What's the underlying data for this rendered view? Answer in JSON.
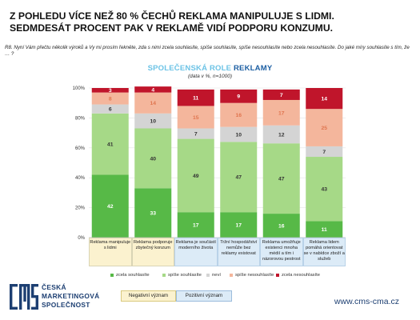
{
  "headline": {
    "line1": "Z POHLEDU VÍCE NEŽ 80 % ČECHŮ REKLAMA MANIPULUJE S LIDMI.",
    "line2": "SEDMDESÁT PROCENT PAK V REKLAMĚ VIDÍ PODPORU KONZUMU."
  },
  "question": "R8. Nyní Vám přečtu několik výroků a Vy mi prosím řekněte, zda s nimi zcela souhlasíte, spíše souhlasíte, spíše nesouhlasíte nebo zcela nesouhlasíte. Do jaké míry souhlasíte s tím, že … ?",
  "logo": {
    "mark": "CMS",
    "line1": "ČESKÁ",
    "line2": "MARKETINGOVÁ",
    "line3": "SPOLEČNOST"
  },
  "website": "www.cms-cma.cz",
  "meaning": {
    "negative": "Negativní význam",
    "positive": "Pozitivní význam"
  },
  "chart_data": {
    "type": "bar",
    "stacked": true,
    "title_part1": "SPOLEČENSKÁ ROLE",
    "title_part2": "REKLAMY",
    "subtitle": "(data v %, n=1000)",
    "ylim": [
      0,
      100
    ],
    "yticks": [
      "0%",
      "20%",
      "40%",
      "60%",
      "80%",
      "100%"
    ],
    "grid": true,
    "legend_position": "bottom",
    "categories": [
      {
        "label": "Reklama manipuluje s lidmi",
        "group": "negative"
      },
      {
        "label": "Reklama podporuje zbytečný konzum",
        "group": "negative"
      },
      {
        "label": "Reklama je součástí moderního života",
        "group": "positive"
      },
      {
        "label": "Tržní hospodářství nemůže bez reklamy existovat",
        "group": "positive"
      },
      {
        "label": "Reklama umožňuje existenci mnoha médií a tím i názorovou pestrost",
        "group": "positive"
      },
      {
        "label": "Reklama lidem pomáhá orientovat se v nabídce zboží a služeb",
        "group": "positive"
      }
    ],
    "series": [
      {
        "name": "zcela souhlasíte",
        "color": "#57b947",
        "values": [
          42,
          33,
          17,
          17,
          16,
          11
        ]
      },
      {
        "name": "spíše souhlasíte",
        "color": "#a6d987",
        "values": [
          41,
          40,
          49,
          47,
          47,
          43
        ]
      },
      {
        "name": "neví",
        "color": "#d4d4d4",
        "values": [
          6,
          10,
          7,
          10,
          12,
          7
        ]
      },
      {
        "name": "spíše nesouhlasíte",
        "color": "#f4b69c",
        "values": [
          8,
          14,
          15,
          16,
          17,
          25
        ]
      },
      {
        "name": "zcela nesouhlasíte",
        "color": "#c0152b",
        "values": [
          3,
          4,
          11,
          9,
          7,
          14
        ]
      }
    ]
  }
}
